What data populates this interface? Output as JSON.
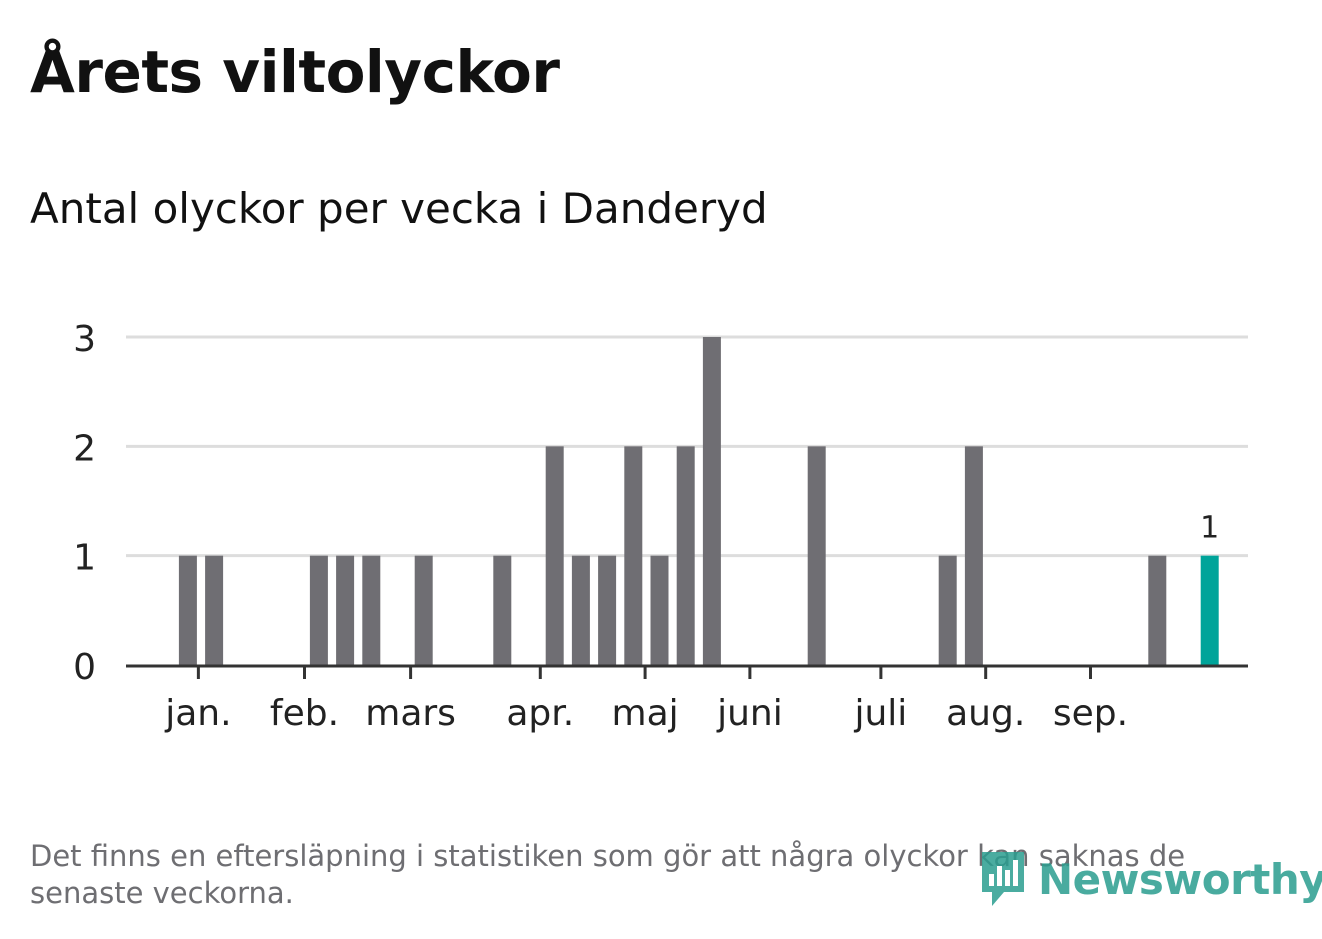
{
  "title": "Årets viltolyckor",
  "subtitle": "Antal olyckor per vecka i Danderyd",
  "footnote": "Det finns en eftersläpning i statistiken som gör att några olyckor kan saknas de senaste veckorna.",
  "logo_text": "Newsworthy",
  "colors": {
    "bar": "#6f6e73",
    "highlight": "#00a49a",
    "grid": "#dddddd",
    "axis": "#333333",
    "logo": "#2a9d8f"
  },
  "chart_data": {
    "type": "bar",
    "ylim": [
      0,
      3
    ],
    "y_ticks": [
      0,
      1,
      2,
      3
    ],
    "weeks": [
      1,
      2,
      3,
      4,
      5,
      6,
      7,
      8,
      9,
      10,
      11,
      12,
      13,
      14,
      15,
      16,
      17,
      18,
      19,
      20,
      21,
      22,
      23,
      24,
      25,
      26,
      27,
      28,
      29,
      30,
      31,
      32,
      33,
      34,
      35,
      36,
      37,
      38,
      39,
      40,
      41,
      42
    ],
    "values": [
      0,
      0,
      1,
      1,
      0,
      0,
      0,
      1,
      1,
      1,
      0,
      1,
      0,
      0,
      1,
      0,
      2,
      1,
      1,
      2,
      1,
      2,
      3,
      0,
      0,
      0,
      2,
      0,
      0,
      0,
      0,
      1,
      2,
      0,
      0,
      0,
      0,
      0,
      0,
      1,
      0,
      1
    ],
    "highlight_week": 42,
    "highlight_label": "1",
    "month_ticks": [
      {
        "label": "jan.",
        "week": 3.4
      },
      {
        "label": "feb.",
        "week": 7.45
      },
      {
        "label": "mars",
        "week": 11.5
      },
      {
        "label": "apr.",
        "week": 16.45
      },
      {
        "label": "maj",
        "week": 20.45
      },
      {
        "label": "juni",
        "week": 24.45
      },
      {
        "label": "juli",
        "week": 29.45
      },
      {
        "label": "aug.",
        "week": 33.45
      },
      {
        "label": "sep.",
        "week": 37.45
      }
    ]
  }
}
